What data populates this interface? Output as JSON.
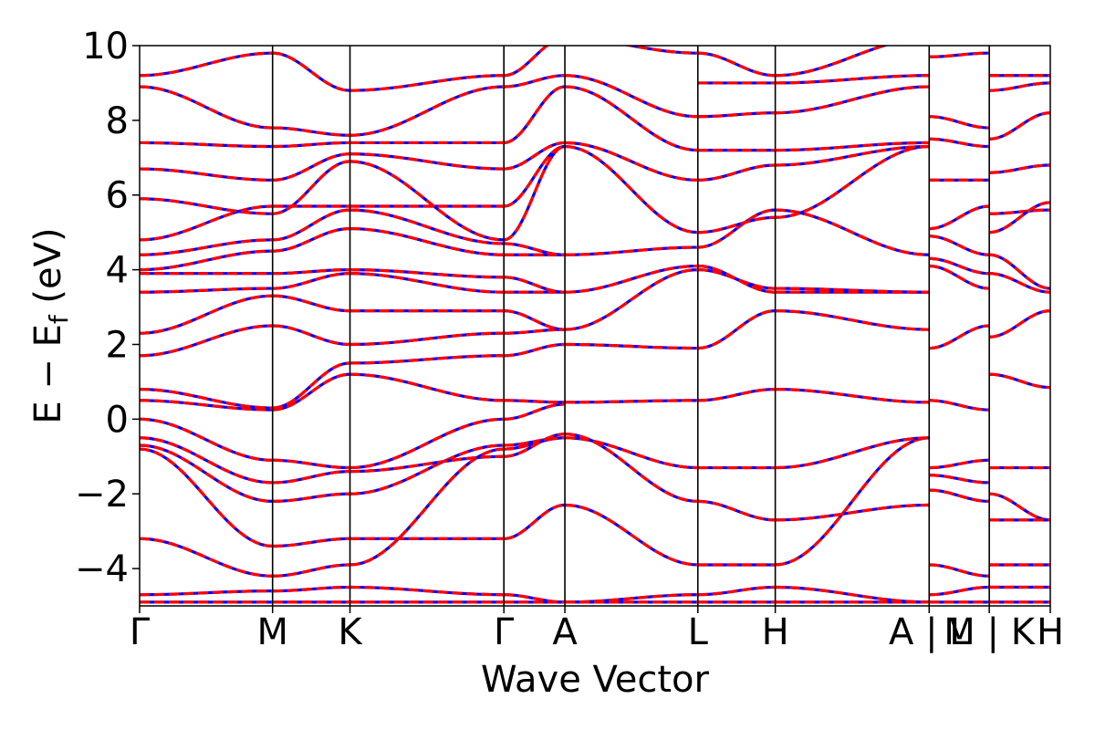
{
  "chart_data": {
    "type": "line",
    "title": "",
    "xlabel": "Wave Vector",
    "ylabel_main": "E − E",
    "ylabel_sub": "f",
    "ylabel_unit": " (eV)",
    "ylim": [
      -5,
      10
    ],
    "yticks": [
      -4,
      -2,
      0,
      2,
      4,
      6,
      8,
      10
    ],
    "ytick_labels": [
      "−4",
      "−2",
      "0",
      "2",
      "4",
      "6",
      "8",
      "10"
    ],
    "xlim": [
      0,
      1
    ],
    "kpoint_labels": [
      {
        "x": 0.0,
        "label": "Γ"
      },
      {
        "x": 0.146,
        "label": "M"
      },
      {
        "x": 0.231,
        "label": "K"
      },
      {
        "x": 0.4,
        "label": "Γ"
      },
      {
        "x": 0.467,
        "label": "A"
      },
      {
        "x": 0.613,
        "label": "L"
      },
      {
        "x": 0.698,
        "label": "H"
      },
      {
        "x": 0.867,
        "label": "A | L"
      },
      {
        "x": 0.933,
        "label": "M | K"
      },
      {
        "x": 1.0,
        "label": "H"
      }
    ],
    "kpoint_lines": [
      0.146,
      0.231,
      0.4,
      0.467,
      0.613,
      0.698,
      0.867,
      0.933
    ],
    "styles": {
      "series_a": {
        "color": "#0000ff",
        "dash": "none"
      },
      "series_b": {
        "color": "#ff0000",
        "dash": "dashed"
      }
    },
    "segments": [
      {
        "x0": 0.0,
        "x1": 0.146,
        "bands": [
          [
            -4.9,
            -4.9
          ],
          [
            -4.7,
            -4.6
          ],
          [
            -3.2,
            -4.2
          ],
          [
            -0.8,
            -3.4
          ],
          [
            -0.7,
            -2.2
          ],
          [
            -0.5,
            -1.7
          ],
          [
            0.0,
            -1.1
          ],
          [
            0.5,
            0.25
          ],
          [
            0.8,
            0.3
          ],
          [
            1.7,
            2.5
          ],
          [
            2.3,
            3.3
          ],
          [
            3.4,
            3.5
          ],
          [
            3.9,
            3.9
          ],
          [
            4.0,
            4.5
          ],
          [
            4.4,
            4.8
          ],
          [
            4.8,
            5.7
          ],
          [
            5.9,
            5.5
          ],
          [
            6.7,
            6.4
          ],
          [
            7.4,
            7.3
          ],
          [
            8.9,
            7.8
          ],
          [
            9.2,
            9.8
          ]
        ]
      },
      {
        "x0": 0.146,
        "x1": 0.231,
        "bands": [
          [
            -4.9,
            -4.9
          ],
          [
            -4.6,
            -4.5
          ],
          [
            -4.2,
            -3.9
          ],
          [
            -3.4,
            -3.2
          ],
          [
            -2.2,
            -2.0
          ],
          [
            -1.7,
            -1.4
          ],
          [
            -1.1,
            -1.3
          ],
          [
            0.25,
            1.2
          ],
          [
            0.3,
            1.5
          ],
          [
            2.5,
            2.0
          ],
          [
            3.3,
            2.9
          ],
          [
            3.5,
            3.9
          ],
          [
            3.9,
            4.0
          ],
          [
            4.5,
            5.1
          ],
          [
            4.8,
            5.6
          ],
          [
            5.7,
            5.7
          ],
          [
            5.5,
            6.9
          ],
          [
            6.4,
            7.1
          ],
          [
            7.3,
            7.4
          ],
          [
            7.8,
            7.6
          ],
          [
            9.8,
            8.8
          ]
        ]
      },
      {
        "x0": 0.231,
        "x1": 0.4,
        "bands": [
          [
            -4.9,
            -4.9
          ],
          [
            -4.5,
            -4.7
          ],
          [
            -3.9,
            -0.8
          ],
          [
            -3.2,
            -3.2
          ],
          [
            -2.0,
            -0.7
          ],
          [
            -1.4,
            -1.0
          ],
          [
            -1.3,
            0.0
          ],
          [
            1.2,
            0.5
          ],
          [
            1.5,
            1.7
          ],
          [
            2.0,
            2.3
          ],
          [
            2.9,
            2.9
          ],
          [
            3.9,
            3.4
          ],
          [
            4.0,
            3.8
          ],
          [
            5.1,
            4.4
          ],
          [
            5.6,
            4.7
          ],
          [
            5.7,
            5.7
          ],
          [
            6.9,
            4.8
          ],
          [
            7.1,
            6.7
          ],
          [
            7.4,
            7.4
          ],
          [
            7.6,
            8.9
          ],
          [
            8.8,
            9.2
          ]
        ]
      },
      {
        "x0": 0.4,
        "x1": 0.467,
        "bands": [
          [
            -4.9,
            -4.9
          ],
          [
            -4.7,
            -4.9
          ],
          [
            -0.8,
            -0.5
          ],
          [
            -3.2,
            -2.3
          ],
          [
            -0.7,
            -0.5
          ],
          [
            -1.0,
            -0.4
          ],
          [
            0.0,
            0.4
          ],
          [
            0.5,
            0.45
          ],
          [
            1.7,
            2.0
          ],
          [
            2.3,
            2.4
          ],
          [
            2.9,
            2.4
          ],
          [
            3.4,
            3.4
          ],
          [
            3.8,
            3.4
          ],
          [
            4.4,
            4.4
          ],
          [
            4.7,
            4.4
          ],
          [
            5.7,
            7.3
          ],
          [
            4.8,
            7.3
          ],
          [
            6.7,
            7.4
          ],
          [
            7.4,
            8.9
          ],
          [
            8.9,
            9.2
          ],
          [
            9.2,
            10.2
          ]
        ]
      },
      {
        "x0": 0.467,
        "x1": 0.613,
        "bands": [
          [
            -4.9,
            -4.9
          ],
          [
            -4.9,
            -4.7
          ],
          [
            -2.3,
            -3.9
          ],
          [
            -0.5,
            -1.3
          ],
          [
            -0.4,
            -2.2
          ],
          [
            0.45,
            0.5
          ],
          [
            2.0,
            1.9
          ],
          [
            2.4,
            4.0
          ],
          [
            3.4,
            4.1
          ],
          [
            4.4,
            4.6
          ],
          [
            7.3,
            5.0
          ],
          [
            7.4,
            6.4
          ],
          [
            8.9,
            7.2
          ],
          [
            9.2,
            8.1
          ],
          [
            10.2,
            9.8
          ]
        ]
      },
      {
        "x0": 0.613,
        "x1": 0.698,
        "bands": [
          [
            -4.9,
            -4.9
          ],
          [
            -4.7,
            -4.5
          ],
          [
            -3.9,
            -3.9
          ],
          [
            -1.3,
            -1.3
          ],
          [
            -2.2,
            -2.7
          ],
          [
            0.5,
            0.8
          ],
          [
            1.9,
            2.9
          ],
          [
            4.0,
            3.5
          ],
          [
            4.1,
            3.4
          ],
          [
            4.6,
            5.6
          ],
          [
            5.0,
            5.4
          ],
          [
            6.4,
            6.8
          ],
          [
            7.2,
            7.2
          ],
          [
            8.1,
            8.2
          ],
          [
            9.0,
            9.0
          ],
          [
            9.8,
            9.2
          ]
        ]
      },
      {
        "x0": 0.698,
        "x1": 0.867,
        "bands": [
          [
            -4.9,
            -4.9
          ],
          [
            -4.5,
            -4.9
          ],
          [
            -3.9,
            -0.5
          ],
          [
            -1.3,
            -0.5
          ],
          [
            -2.7,
            -2.3
          ],
          [
            0.8,
            0.45
          ],
          [
            2.9,
            2.4
          ],
          [
            3.5,
            3.4
          ],
          [
            3.4,
            3.4
          ],
          [
            5.6,
            4.4
          ],
          [
            5.4,
            7.3
          ],
          [
            6.8,
            7.3
          ],
          [
            7.2,
            7.4
          ],
          [
            8.2,
            8.9
          ],
          [
            9.0,
            9.2
          ],
          [
            9.2,
            10.2
          ]
        ]
      },
      {
        "x0": 0.867,
        "x1": 0.933,
        "bands": [
          [
            -4.9,
            -4.9
          ],
          [
            -4.7,
            -4.5
          ],
          [
            -3.9,
            -4.2
          ],
          [
            -1.3,
            -1.1
          ],
          [
            -1.5,
            -1.7
          ],
          [
            -1.9,
            -2.2
          ],
          [
            0.5,
            0.25
          ],
          [
            1.9,
            2.5
          ],
          [
            4.1,
            3.5
          ],
          [
            4.3,
            3.9
          ],
          [
            4.9,
            4.4
          ],
          [
            5.1,
            5.7
          ],
          [
            6.4,
            6.4
          ],
          [
            7.5,
            7.3
          ],
          [
            8.1,
            7.8
          ],
          [
            9.7,
            9.8
          ]
        ]
      },
      {
        "x0": 0.933,
        "x1": 1.0,
        "bands": [
          [
            -4.9,
            -4.9
          ],
          [
            -4.5,
            -4.5
          ],
          [
            -3.9,
            -3.9
          ],
          [
            -1.3,
            -1.3
          ],
          [
            -2.0,
            -2.7
          ],
          [
            -2.7,
            -2.7
          ],
          [
            1.2,
            0.85
          ],
          [
            2.2,
            2.9
          ],
          [
            3.9,
            3.4
          ],
          [
            4.4,
            3.5
          ],
          [
            5.5,
            5.6
          ],
          [
            5.0,
            5.8
          ],
          [
            6.6,
            6.8
          ],
          [
            7.5,
            8.2
          ],
          [
            8.8,
            9.0
          ],
          [
            9.2,
            9.2
          ]
        ]
      }
    ]
  }
}
